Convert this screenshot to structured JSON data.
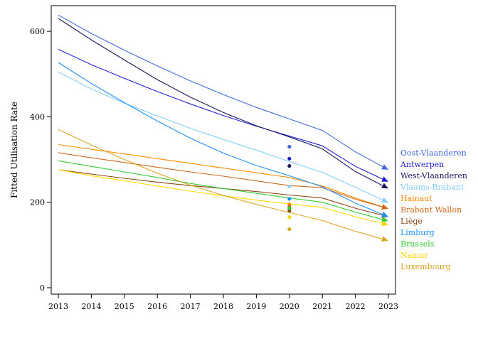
{
  "chart_data": {
    "type": "line",
    "title": "",
    "xlabel": "",
    "ylabel": "Fitted Utilisation Rate",
    "xlim": [
      2013,
      2023
    ],
    "ylim": [
      -15,
      660
    ],
    "x_ticks": [
      2013,
      2014,
      2015,
      2016,
      2017,
      2018,
      2019,
      2020,
      2021,
      2022,
      2023
    ],
    "y_ticks": [
      0,
      200,
      400,
      600
    ],
    "grid": false,
    "legend": "right",
    "x": [
      2013,
      2014,
      2015,
      2016,
      2017,
      2018,
      2019,
      2020,
      2021,
      2022,
      2023
    ],
    "series": [
      {
        "name": "Oost-Vlaanderen",
        "color": "#4169e1",
        "values": [
          638,
          595,
          556,
          519,
          484,
          452,
          422,
          395,
          368,
          318,
          276
        ],
        "point_2020": 330
      },
      {
        "name": "Antwerpen",
        "color": "#1f1fd6",
        "values": [
          558,
          522,
          490,
          459,
          430,
          403,
          378,
          355,
          332,
          284,
          248
        ],
        "point_2020": 302
      },
      {
        "name": "West-Vlaanderen",
        "color": "#18185c",
        "values": [
          630,
          580,
          533,
          487,
          446,
          410,
          379,
          353,
          325,
          272,
          232
        ],
        "point_2020": 285
      },
      {
        "name": "Vlaams-Brabant",
        "color": "#87cefa",
        "values": [
          505,
          465,
          432,
          402,
          373,
          347,
          322,
          295,
          270,
          235,
          199
        ],
        "point_2020": 237
      },
      {
        "name": "Hainaut",
        "color": "#ff8c00",
        "values": [
          335,
          324,
          313,
          302,
          291,
          280,
          269,
          258,
          238,
          210,
          185
        ],
        "point_2020": 195
      },
      {
        "name": "Brabant Wallon",
        "color": "#d2691e",
        "values": [
          316,
          304,
          293,
          282,
          271,
          261,
          250,
          239,
          234,
          207,
          185
        ],
        "point_2020": 190
      },
      {
        "name": "Liège",
        "color": "#8b4513",
        "values": [
          276,
          266,
          256,
          247,
          239,
          232,
          225,
          217,
          210,
          186,
          166
        ],
        "point_2020": 180
      },
      {
        "name": "Limburg",
        "color": "#1e90ff",
        "values": [
          527,
          478,
          433,
          390,
          350,
          315,
          286,
          262,
          236,
          198,
          166
        ],
        "point_2020": 208
      },
      {
        "name": "Brussels",
        "color": "#32cd32",
        "values": [
          297,
          284,
          271,
          258,
          244,
          232,
          221,
          210,
          200,
          177,
          156
        ],
        "point_2020": 186
      },
      {
        "name": "Namur",
        "color": "#ffd700",
        "values": [
          276,
          262,
          250,
          238,
          226,
          215,
          205,
          196,
          188,
          166,
          147
        ],
        "point_2020": 165
      },
      {
        "name": "Luxembourg",
        "color": "#daa520",
        "values": [
          370,
          334,
          300,
          268,
          240,
          216,
          195,
          176,
          157,
          132,
          110
        ],
        "point_2020": 137
      }
    ]
  }
}
